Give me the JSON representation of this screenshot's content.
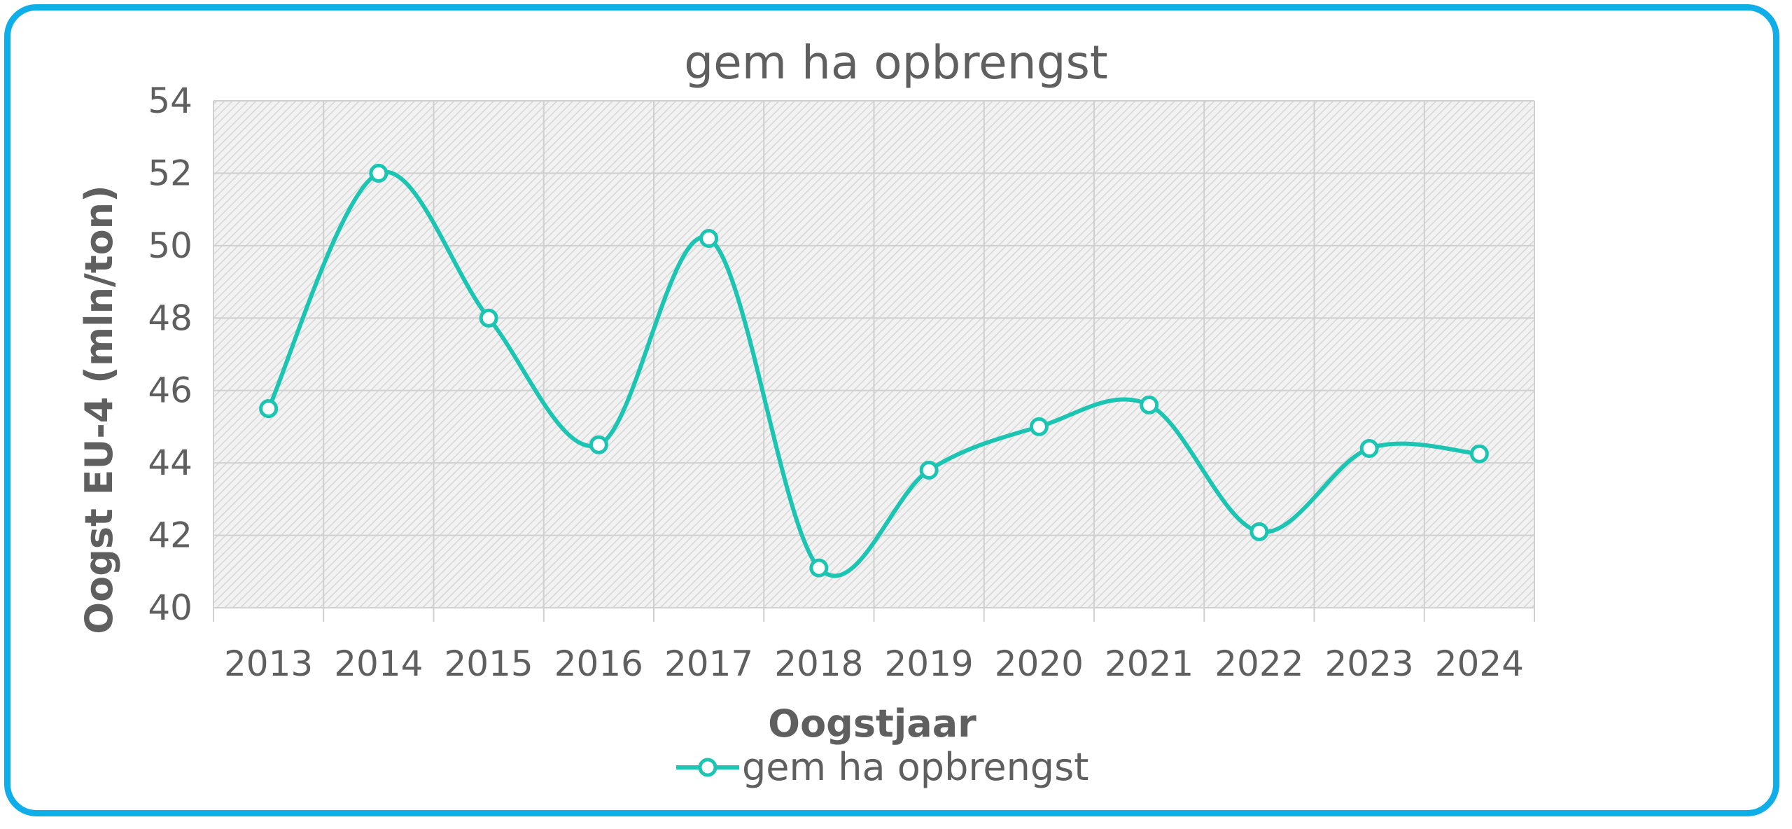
{
  "chart_data": {
    "type": "line",
    "title": "gem ha opbrengst",
    "xlabel": "Oogstjaar",
    "ylabel": "Oogst EU-4 (mln/ton)",
    "categories": [
      "2013",
      "2014",
      "2015",
      "2016",
      "2017",
      "2018",
      "2019",
      "2020",
      "2021",
      "2022",
      "2023",
      "2024"
    ],
    "series": [
      {
        "name": "gem ha opbrengst",
        "values": [
          45.5,
          52.0,
          48.0,
          44.5,
          50.2,
          41.1,
          43.8,
          45.0,
          45.6,
          42.1,
          44.4,
          44.25
        ],
        "color": "#1cc4b2"
      }
    ],
    "ylim": [
      40,
      54
    ],
    "yticks": [
      "40",
      "42",
      "44",
      "46",
      "48",
      "50",
      "52",
      "54"
    ],
    "grid": true,
    "plot_fill": "hatched light gray",
    "legend_position": "bottom",
    "line_style": "smooth with hollow circle markers"
  },
  "colors": {
    "border": "#10aee8",
    "text": "#5f5f5f",
    "grid": "#d0d0d0"
  }
}
